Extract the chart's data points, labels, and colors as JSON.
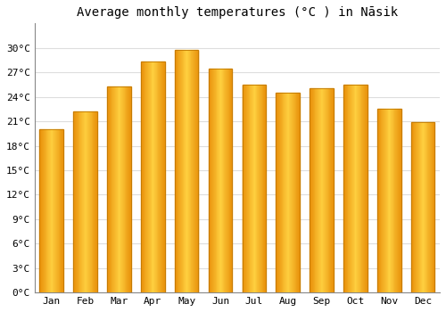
{
  "months": [
    "Jan",
    "Feb",
    "Mar",
    "Apr",
    "May",
    "Jun",
    "Jul",
    "Aug",
    "Sep",
    "Oct",
    "Nov",
    "Dec"
  ],
  "temperatures": [
    20.0,
    22.2,
    25.3,
    28.3,
    29.7,
    27.5,
    25.5,
    24.5,
    25.0,
    25.5,
    22.5,
    20.9
  ],
  "bar_color_center": "#FFD040",
  "bar_color_edge": "#E8900A",
  "bar_edge_color": "#C07800",
  "title": "Average monthly temperatures (°C ) in Nāsik",
  "ylim": [
    0,
    33
  ],
  "yticks": [
    0,
    3,
    6,
    9,
    12,
    15,
    18,
    21,
    24,
    27,
    30
  ],
  "ytick_labels": [
    "0°C",
    "3°C",
    "6°C",
    "9°C",
    "12°C",
    "15°C",
    "18°C",
    "21°C",
    "24°C",
    "27°C",
    "30°C"
  ],
  "grid_color": "#dddddd",
  "background_color": "#ffffff",
  "title_fontsize": 10,
  "tick_fontsize": 8,
  "font_family": "monospace"
}
